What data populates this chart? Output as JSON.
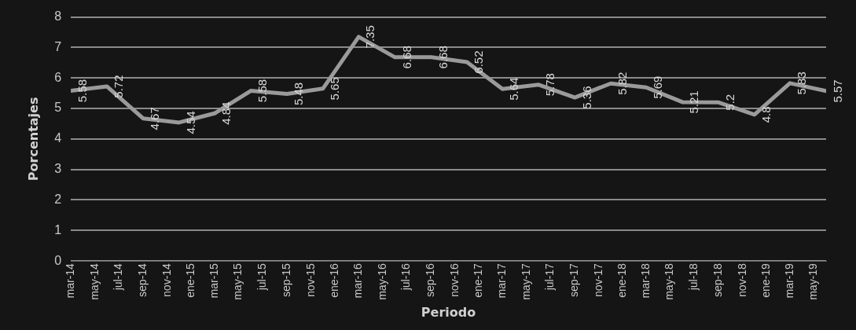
{
  "chart_data": {
    "type": "line",
    "xlabel": "Periodo",
    "ylabel": "Porcentajes",
    "x": [
      "2014-03",
      "2014-06",
      "2014-09",
      "2014-12",
      "2015-03",
      "2015-06",
      "2015-09",
      "2015-12",
      "2016-03",
      "2016-06",
      "2016-09",
      "2016-12",
      "2017-03",
      "2017-06",
      "2017-09",
      "2017-12",
      "2018-03",
      "2018-06",
      "2018-09",
      "2018-12",
      "2019-03",
      "2019-06"
    ],
    "series": [
      {
        "color": "#9a9a9a",
        "values": [
          5.58,
          5.72,
          4.67,
          4.54,
          4.84,
          5.58,
          5.48,
          5.65,
          7.35,
          6.68,
          6.68,
          6.52,
          5.64,
          5.78,
          5.36,
          5.82,
          5.69,
          5.21,
          5.2,
          4.8,
          5.83,
          5.57
        ]
      }
    ],
    "xlim": [
      "2014-03",
      "2019-06"
    ],
    "xticks": [
      {
        "value": "2014-03",
        "label": "mar-14"
      },
      {
        "value": "2014-05",
        "label": "may-14"
      },
      {
        "value": "2014-07",
        "label": "jul-14"
      },
      {
        "value": "2014-09",
        "label": "sep-14"
      },
      {
        "value": "2014-11",
        "label": "nov-14"
      },
      {
        "value": "2015-01",
        "label": "ene-15"
      },
      {
        "value": "2015-03",
        "label": "mar-15"
      },
      {
        "value": "2015-05",
        "label": "may-15"
      },
      {
        "value": "2015-07",
        "label": "jul-15"
      },
      {
        "value": "2015-09",
        "label": "sep-15"
      },
      {
        "value": "2015-11",
        "label": "nov-15"
      },
      {
        "value": "2016-01",
        "label": "ene-16"
      },
      {
        "value": "2016-03",
        "label": "mar-16"
      },
      {
        "value": "2016-05",
        "label": "may-16"
      },
      {
        "value": "2016-07",
        "label": "jul-16"
      },
      {
        "value": "2016-09",
        "label": "sep-16"
      },
      {
        "value": "2016-11",
        "label": "nov-16"
      },
      {
        "value": "2017-01",
        "label": "ene-17"
      },
      {
        "value": "2017-03",
        "label": "mar-17"
      },
      {
        "value": "2017-05",
        "label": "may-17"
      },
      {
        "value": "2017-07",
        "label": "jul-17"
      },
      {
        "value": "2017-09",
        "label": "sep-17"
      },
      {
        "value": "2017-11",
        "label": "nov-17"
      },
      {
        "value": "2018-01",
        "label": "ene-18"
      },
      {
        "value": "2018-03",
        "label": "mar-18"
      },
      {
        "value": "2018-05",
        "label": "may-18"
      },
      {
        "value": "2018-07",
        "label": "jul-18"
      },
      {
        "value": "2018-09",
        "label": "sep-18"
      },
      {
        "value": "2018-11",
        "label": "nov-18"
      },
      {
        "value": "2019-01",
        "label": "ene-19"
      },
      {
        "value": "2019-03",
        "label": "mar-19"
      },
      {
        "value": "2019-05",
        "label": "may-19"
      }
    ],
    "ylim": [
      0,
      8
    ],
    "yticks": [
      0,
      1,
      2,
      3,
      4,
      5,
      6,
      7,
      8
    ],
    "grid": "y",
    "legend": false,
    "marker": "none",
    "line_style": "solid",
    "data_labels": true
  }
}
